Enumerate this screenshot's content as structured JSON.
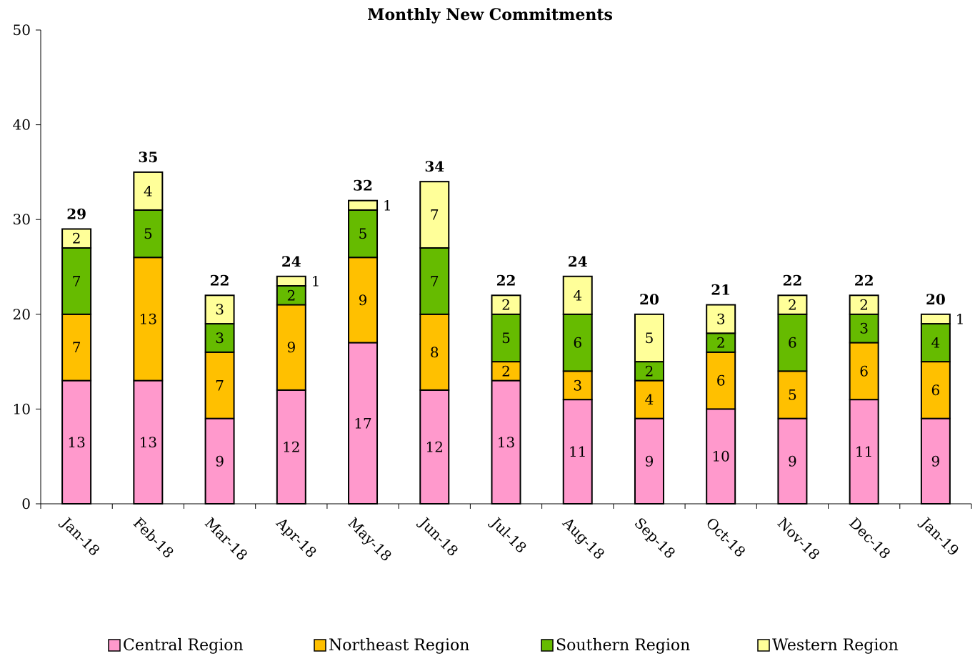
{
  "chart_data": {
    "type": "bar",
    "stacked": true,
    "title": "Monthly New Commitments",
    "xlabel": "",
    "ylabel": "",
    "ylim": [
      0,
      50
    ],
    "yticks": [
      0,
      10,
      20,
      30,
      40,
      50
    ],
    "grid": false,
    "legend_position": "bottom",
    "categories": [
      "Jan-18",
      "Feb-18",
      "Mar-18",
      "Apr-18",
      "May-18",
      "Jun-18",
      "Jul-18",
      "Aug-18",
      "Sep-18",
      "Oct-18",
      "Nov-18",
      "Dec-18",
      "Jan-19"
    ],
    "series": [
      {
        "name": "Central Region",
        "color": "#ff99cc",
        "values": [
          13,
          13,
          9,
          12,
          17,
          12,
          13,
          11,
          9,
          10,
          9,
          11,
          9
        ]
      },
      {
        "name": "Northeast Region",
        "color": "#ffc000",
        "values": [
          7,
          13,
          7,
          9,
          9,
          8,
          2,
          3,
          4,
          6,
          5,
          6,
          6
        ]
      },
      {
        "name": "Southern Region",
        "color": "#66bb00",
        "values": [
          7,
          5,
          3,
          2,
          5,
          7,
          5,
          6,
          2,
          2,
          6,
          3,
          4
        ]
      },
      {
        "name": "Western Region",
        "color": "#ffff99",
        "values": [
          2,
          4,
          3,
          1,
          1,
          7,
          2,
          4,
          5,
          3,
          2,
          2,
          1
        ]
      }
    ],
    "totals": [
      29,
      35,
      22,
      24,
      32,
      34,
      22,
      24,
      20,
      21,
      22,
      22,
      20
    ]
  }
}
